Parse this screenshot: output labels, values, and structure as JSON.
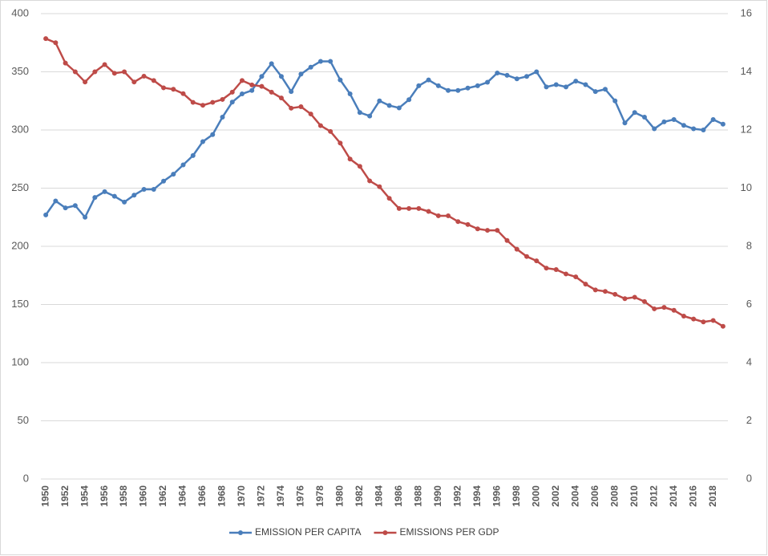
{
  "chart_data": {
    "type": "line",
    "categories": [
      "1950",
      null,
      "1952",
      null,
      "1954",
      null,
      "1956",
      null,
      "1958",
      null,
      "1960",
      null,
      "1962",
      null,
      "1964",
      null,
      "1966",
      null,
      "1968",
      null,
      "1970",
      null,
      "1972",
      null,
      "1974",
      null,
      "1976",
      null,
      "1978",
      null,
      "1980",
      null,
      "1982",
      null,
      "1984",
      null,
      "1986",
      null,
      "1988",
      null,
      "1990",
      null,
      "1992",
      null,
      "1994",
      null,
      "1996",
      null,
      "1998",
      null,
      "2000",
      null,
      "2002",
      null,
      "2004",
      null,
      "2006",
      null,
      "2008",
      null,
      "2010",
      null,
      "2012",
      null,
      "2014",
      null,
      "2016",
      null,
      "2018",
      null
    ],
    "series": [
      {
        "name": "EMISSION PER CAPITA",
        "color": "#4a7ebb",
        "values": [
          227,
          239,
          233,
          235,
          225,
          242,
          247,
          243,
          238,
          244,
          249,
          249,
          256,
          262,
          270,
          278,
          290,
          296,
          311,
          324,
          331,
          334,
          346,
          357,
          346,
          333,
          348,
          354,
          359,
          359,
          343,
          331,
          315,
          312,
          325,
          321,
          319,
          326,
          338,
          343,
          338,
          334,
          334,
          336,
          338,
          341,
          349,
          347,
          344,
          346,
          350,
          337,
          339,
          337,
          342,
          339,
          333,
          335,
          325,
          306,
          315,
          311,
          301,
          307,
          309,
          304,
          301,
          300,
          309,
          305
        ]
      },
      {
        "name": "EMISSIONS PER GDP",
        "color": "#be4b48",
        "axis": "y2",
        "values": [
          15.14,
          15.0,
          14.3,
          14.0,
          13.65,
          14.0,
          14.25,
          13.95,
          14.0,
          13.65,
          13.85,
          13.7,
          13.45,
          13.4,
          13.25,
          12.95,
          12.85,
          12.95,
          13.05,
          13.3,
          13.7,
          13.55,
          13.5,
          13.3,
          13.1,
          12.75,
          12.8,
          12.55,
          12.15,
          11.95,
          11.55,
          11.0,
          10.75,
          10.25,
          10.05,
          9.65,
          9.3,
          9.3,
          9.3,
          9.2,
          9.05,
          9.05,
          8.85,
          8.75,
          8.6,
          8.55,
          8.55,
          8.2,
          7.9,
          7.65,
          7.5,
          7.25,
          7.2,
          7.05,
          6.95,
          6.7,
          6.5,
          6.45,
          6.35,
          6.2,
          6.25,
          6.1,
          5.85,
          5.9,
          5.8,
          5.6,
          5.5,
          5.4,
          5.45,
          5.25
        ]
      }
    ],
    "ylim": [
      0,
      400
    ],
    "yticks": [
      0,
      50,
      100,
      150,
      200,
      250,
      300,
      350,
      400
    ],
    "y2lim": [
      0,
      16
    ],
    "y2ticks": [
      0,
      2,
      4,
      6,
      8,
      10,
      12,
      14,
      16
    ],
    "grid": true,
    "legend": "bottom"
  }
}
